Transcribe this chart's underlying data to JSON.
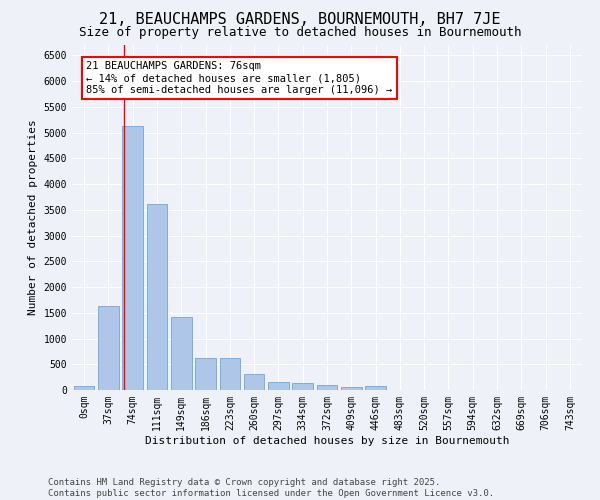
{
  "title": "21, BEAUCHAMPS GARDENS, BOURNEMOUTH, BH7 7JE",
  "subtitle": "Size of property relative to detached houses in Bournemouth",
  "xlabel": "Distribution of detached houses by size in Bournemouth",
  "ylabel": "Number of detached properties",
  "footer_line1": "Contains HM Land Registry data © Crown copyright and database right 2025.",
  "footer_line2": "Contains public sector information licensed under the Open Government Licence v3.0.",
  "bar_labels": [
    "0sqm",
    "37sqm",
    "74sqm",
    "111sqm",
    "149sqm",
    "186sqm",
    "223sqm",
    "260sqm",
    "297sqm",
    "334sqm",
    "372sqm",
    "409sqm",
    "446sqm",
    "483sqm",
    "520sqm",
    "557sqm",
    "594sqm",
    "632sqm",
    "669sqm",
    "706sqm",
    "743sqm"
  ],
  "bar_values": [
    80,
    1640,
    5120,
    3620,
    1420,
    620,
    620,
    310,
    160,
    130,
    90,
    50,
    80,
    0,
    0,
    0,
    0,
    0,
    0,
    0,
    0
  ],
  "bar_color": "#aec6e8",
  "bar_edge_color": "#5b9bd5",
  "vline_color": "red",
  "annotation_text": "21 BEAUCHAMPS GARDENS: 76sqm\n← 14% of detached houses are smaller (1,805)\n85% of semi-detached houses are larger (11,096) →",
  "ylim": [
    0,
    6700
  ],
  "yticks": [
    0,
    500,
    1000,
    1500,
    2000,
    2500,
    3000,
    3500,
    4000,
    4500,
    5000,
    5500,
    6000,
    6500
  ],
  "background_color": "#eef2f8",
  "plot_bg_color": "#eef2f8",
  "grid_color": "white",
  "title_fontsize": 11,
  "subtitle_fontsize": 9,
  "label_fontsize": 8,
  "tick_fontsize": 7,
  "footer_fontsize": 6.5,
  "annotation_fontsize": 7.5
}
